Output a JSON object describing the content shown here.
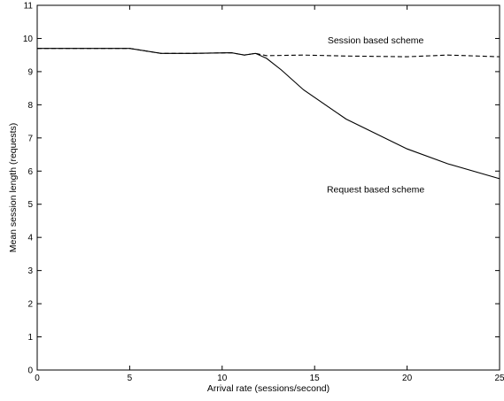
{
  "chart_data": {
    "type": "line",
    "title": "",
    "xlabel": "Arrival rate (sessions/second)",
    "ylabel": "Mean session length (requests)",
    "xlim": [
      0,
      25
    ],
    "ylim": [
      0,
      11
    ],
    "xticks": [
      "0",
      "5",
      "10",
      "15",
      "20",
      "25"
    ],
    "yticks": [
      "0",
      "1",
      "2",
      "3",
      "4",
      "5",
      "6",
      "7",
      "8",
      "9",
      "10",
      "11"
    ],
    "grid": false,
    "series": [
      {
        "name": "Request based scheme",
        "style": "solid",
        "x": [
          0,
          5,
          6.7,
          8.3,
          10.5,
          11.2,
          11.8,
          12.4,
          13.2,
          14.4,
          16.7,
          20,
          22.2,
          25
        ],
        "y": [
          9.7,
          9.7,
          9.55,
          9.55,
          9.57,
          9.5,
          9.55,
          9.4,
          9.05,
          8.45,
          7.57,
          6.67,
          6.22,
          5.77
        ]
      },
      {
        "name": "Session based scheme",
        "style": "dashed",
        "x": [
          0,
          5,
          6.7,
          8.3,
          10.5,
          11.2,
          11.8,
          12.4,
          14.4,
          16.7,
          20,
          22.2,
          25
        ],
        "y": [
          9.7,
          9.7,
          9.55,
          9.55,
          9.57,
          9.5,
          9.55,
          9.48,
          9.5,
          9.47,
          9.45,
          9.5,
          9.45
        ]
      }
    ],
    "annotations": [
      {
        "text": "Session based scheme",
        "x": 18.3,
        "y": 9.85
      },
      {
        "text": "Request based scheme",
        "x": 18.3,
        "y": 5.35
      }
    ]
  }
}
